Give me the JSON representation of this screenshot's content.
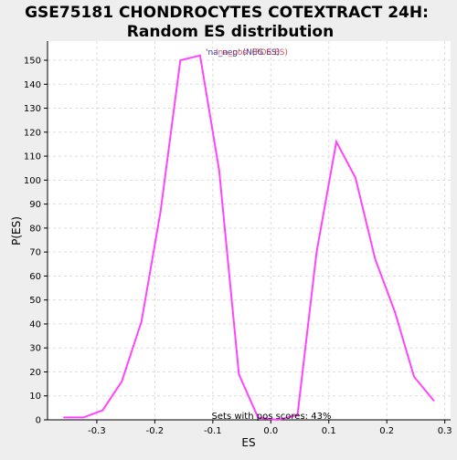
{
  "chart_data": {
    "type": "line",
    "title_lines": [
      "GSE75181 CHONDROCYTES COTEXTRACT 24H:",
      "Random ES distribution"
    ],
    "xlabel": "ES",
    "ylabel": "P(ES)",
    "xlim": [
      -0.385,
      0.31
    ],
    "ylim": [
      0,
      158
    ],
    "xticks": [
      -0.3,
      -0.2,
      -0.1,
      0.0,
      0.1,
      0.2,
      0.3
    ],
    "xtick_labels": [
      "-0.3",
      "-0.2",
      "-0.1",
      "0.0",
      "0.1",
      "0.2",
      "0.3"
    ],
    "yticks": [
      0,
      10,
      20,
      30,
      40,
      50,
      60,
      70,
      80,
      90,
      100,
      110,
      120,
      130,
      140,
      150
    ],
    "grid": true,
    "legend_text_a": "'na_neg' (NEG ES)",
    "legend_text_b": "'na_pos' (POS ES)",
    "annotation": "Sets with pos scores: 43%",
    "colors": {
      "line": "#ff44ff",
      "legend_a": "#3333aa",
      "legend_b": "#cc3333",
      "grid": "#dddddd",
      "axis": "#000000"
    },
    "series": [
      {
        "values": [
          {
            "x": -0.357,
            "y": 1
          },
          {
            "x": -0.323,
            "y": 1
          },
          {
            "x": -0.29,
            "y": 4
          },
          {
            "x": -0.257,
            "y": 16
          },
          {
            "x": -0.223,
            "y": 41
          },
          {
            "x": -0.19,
            "y": 87
          },
          {
            "x": -0.156,
            "y": 150
          },
          {
            "x": -0.122,
            "y": 152
          },
          {
            "x": -0.089,
            "y": 104
          },
          {
            "x": -0.055,
            "y": 19
          },
          {
            "x": -0.022,
            "y": 1
          },
          {
            "x": 0.012,
            "y": 0
          },
          {
            "x": 0.046,
            "y": 2
          },
          {
            "x": 0.079,
            "y": 70
          },
          {
            "x": 0.113,
            "y": 116
          },
          {
            "x": 0.146,
            "y": 101
          },
          {
            "x": 0.18,
            "y": 67
          },
          {
            "x": 0.214,
            "y": 45
          },
          {
            "x": 0.247,
            "y": 18
          },
          {
            "x": 0.281,
            "y": 8
          }
        ]
      }
    ]
  }
}
